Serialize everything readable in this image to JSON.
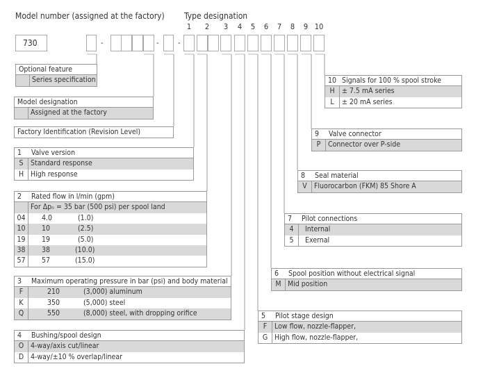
{
  "header": {
    "model_number_label": "Model number (assigned at the factory)",
    "type_designation_label": "Type designation",
    "positions": [
      "1",
      "2",
      "3",
      "4",
      "5",
      "6",
      "7",
      "8",
      "9",
      "10"
    ],
    "model_code": "730",
    "separator": "-"
  },
  "tables": {
    "optional": {
      "title": "Optional feature",
      "rows": [
        {
          "key": "",
          "text": "Series specification"
        }
      ]
    },
    "model": {
      "title": "Model designation",
      "rows": [
        {
          "key": "",
          "text": "Assigned at the factory"
        }
      ]
    },
    "factory": {
      "title": "Factory Identification (Revision Level)",
      "rows": []
    },
    "t1": {
      "num": "1",
      "title": "Valve version",
      "rows": [
        {
          "key": "S",
          "text": "Standard response"
        },
        {
          "key": "H",
          "text": "High response"
        }
      ]
    },
    "t2": {
      "num": "2",
      "title": "Rated flow in l/min (gpm)",
      "rows": [
        {
          "key": "",
          "text": "For Δpₙ = 35 bar (500 psi) per spool land"
        },
        {
          "key": "04",
          "value": "4.0",
          "extra": "(1.0)"
        },
        {
          "key": "10",
          "value": "10",
          "extra": "(2.5)"
        },
        {
          "key": "19",
          "value": "19",
          "extra": "(5.0)"
        },
        {
          "key": "38",
          "value": "38",
          "extra": "(10.0)"
        },
        {
          "key": "57",
          "value": "57",
          "extra": "(15.0)"
        }
      ]
    },
    "t3": {
      "num": "3",
      "title": "Maximum operating pressure in bar (psi) and body material",
      "rows": [
        {
          "key": "F",
          "value": "210",
          "extra": "(3,000) aluminum"
        },
        {
          "key": "K",
          "value": "350",
          "extra": "(5,000) steel"
        },
        {
          "key": "Q",
          "value": "550",
          "extra": "(8,000) steel, with dropping orifice"
        }
      ]
    },
    "t4": {
      "num": "4",
      "title": "Bushing/spool design",
      "rows": [
        {
          "key": "O",
          "text": "4-way/axis cut/linear"
        },
        {
          "key": "D",
          "text": "4-way/±10 % overlap/linear"
        }
      ]
    },
    "t5": {
      "num": "5",
      "title": "Pilot stage design",
      "rows": [
        {
          "key": "F",
          "text": "Low flow, nozzle-flapper,"
        },
        {
          "key": "G",
          "text": "High flow, nozzle-flapper,"
        }
      ]
    },
    "t6": {
      "num": "6",
      "title": "Spool position without electrical signal",
      "rows": [
        {
          "key": "M",
          "text": "Mid position"
        }
      ]
    },
    "t7": {
      "num": "7",
      "title": "Pilot connections",
      "rows": [
        {
          "key": "4",
          "text": "Internal"
        },
        {
          "key": "5",
          "text": "Exernal"
        }
      ]
    },
    "t8": {
      "num": "8",
      "title": "Seal material",
      "rows": [
        {
          "key": "V",
          "text": "Fluorocarbon (FKM) 85 Shore A"
        }
      ]
    },
    "t9": {
      "num": "9",
      "title": "Valve connector",
      "rows": [
        {
          "key": "P",
          "text": "Connector over P-side"
        }
      ]
    },
    "t10": {
      "num": "10",
      "title": "Signals for 100 % spool stroke",
      "rows": [
        {
          "key": "H",
          "text": "± 7.5 mA series"
        },
        {
          "key": "L",
          "text": "± 20 mA series"
        }
      ]
    }
  },
  "colors": {
    "shade": "#d9d9d9",
    "border": "#999999",
    "text": "#333333"
  }
}
